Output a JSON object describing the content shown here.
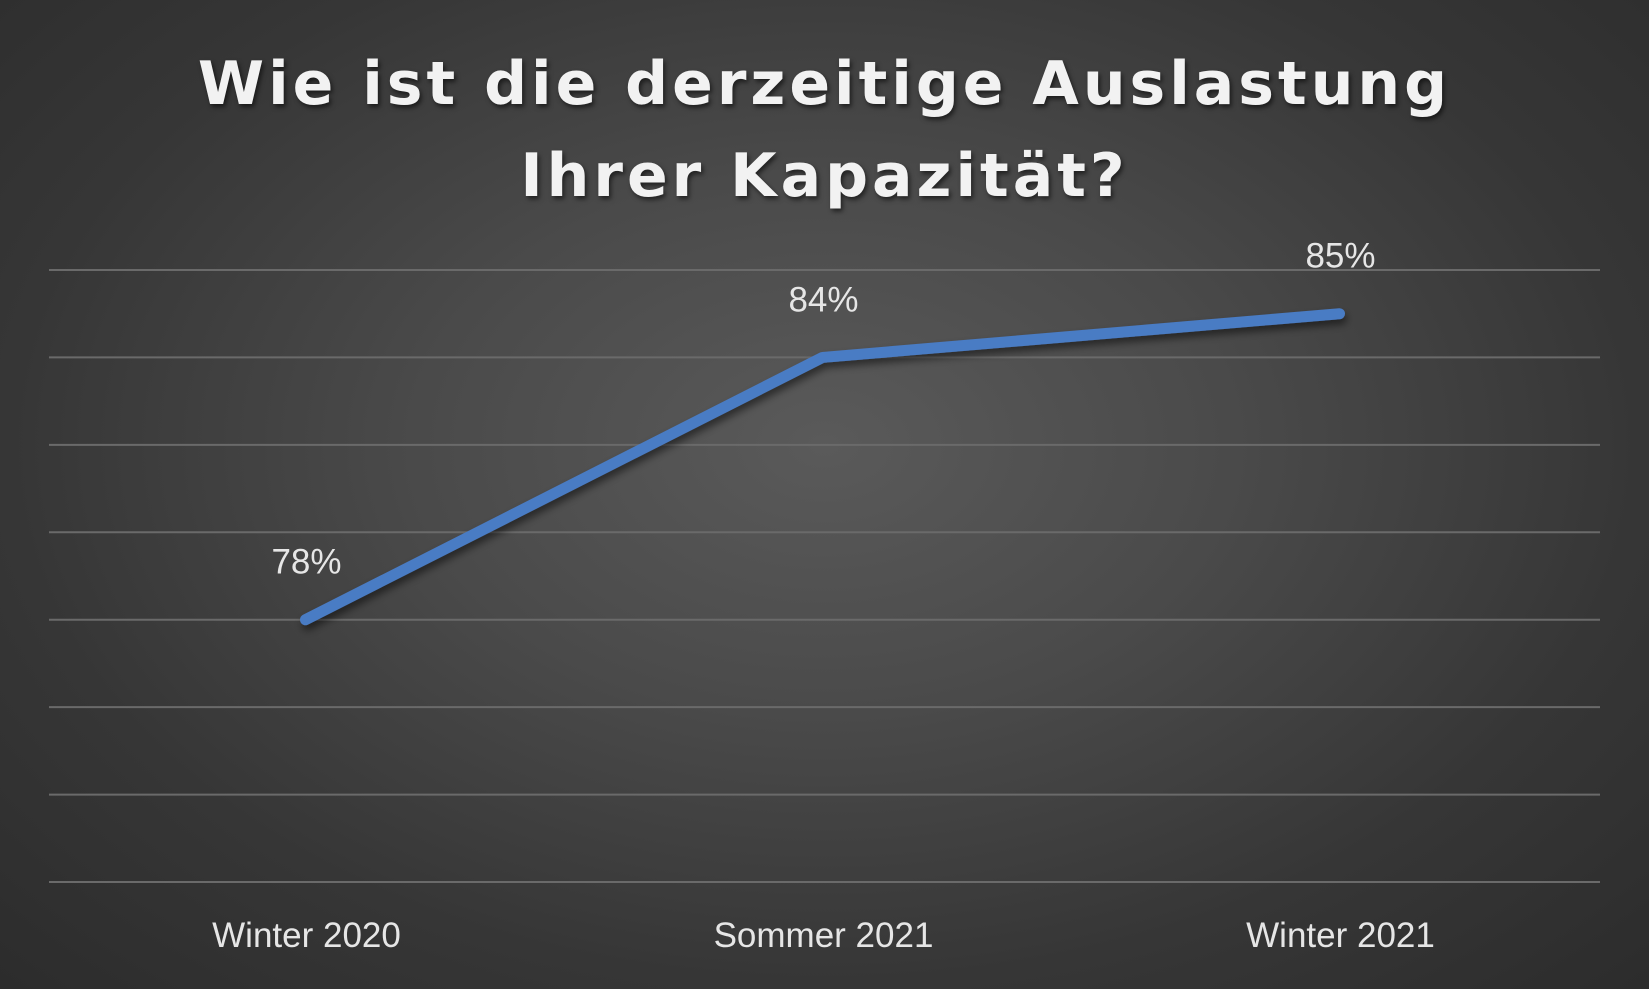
{
  "chart_data": {
    "type": "line",
    "title_lines": [
      "Wie ist die derzeitige Auslastung",
      "Ihrer Kapazität?"
    ],
    "categories": [
      "Winter 2020",
      "Sommer 2021",
      "Winter 2021"
    ],
    "series": [
      {
        "values": [
          78,
          84,
          85
        ],
        "labels": [
          "78%",
          "84%",
          "85%"
        ],
        "color": "#4a7bc4"
      }
    ],
    "ylim": [
      72,
      86
    ],
    "grid_step": 2,
    "grid": true,
    "legend": "none"
  },
  "colors": {
    "background": "#3a3a3a",
    "grid": "#6a6a6a",
    "text": "#e6e6e6"
  }
}
